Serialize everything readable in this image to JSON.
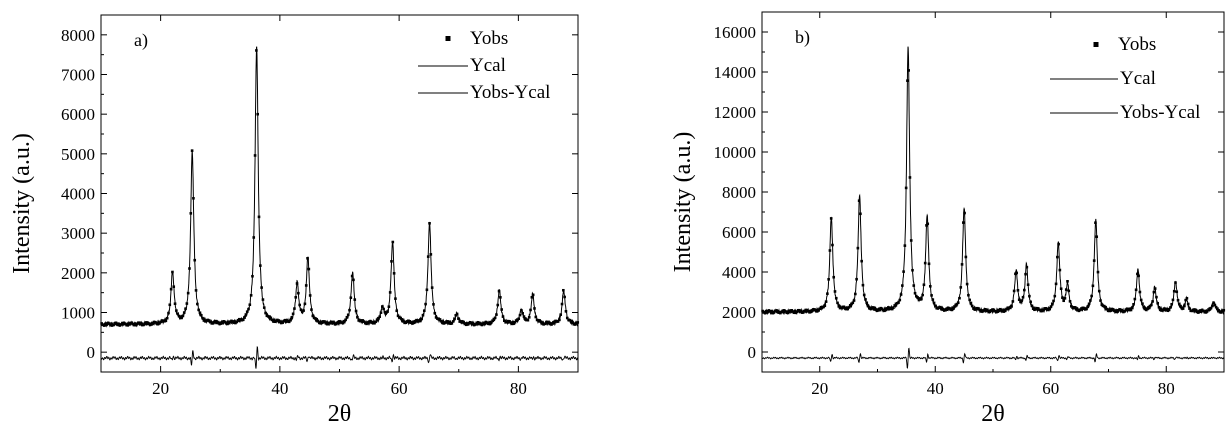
{
  "chart_data": [
    {
      "type": "line",
      "panel_label": "a)",
      "xlabel": "2θ",
      "ylabel": "Intensity (a.u.)",
      "xlim": [
        10,
        90
      ],
      "ylim": [
        -500,
        8500
      ],
      "xticks": [
        "20",
        "40",
        "60",
        "80"
      ],
      "yticks": [
        "0",
        "1000",
        "2000",
        "3000",
        "4000",
        "5000",
        "6000",
        "7000",
        "8000"
      ],
      "grid": false,
      "legend_position": "top-right",
      "background_level": 700,
      "peaks": [
        {
          "x": 22.0,
          "y": 2000
        },
        {
          "x": 25.3,
          "y": 5050
        },
        {
          "x": 36.1,
          "y": 7700
        },
        {
          "x": 42.9,
          "y": 1700
        },
        {
          "x": 44.7,
          "y": 2350
        },
        {
          "x": 52.2,
          "y": 2000
        },
        {
          "x": 57.2,
          "y": 1100
        },
        {
          "x": 58.9,
          "y": 2750
        },
        {
          "x": 65.1,
          "y": 3250
        },
        {
          "x": 69.7,
          "y": 950
        },
        {
          "x": 76.8,
          "y": 1550
        },
        {
          "x": 80.5,
          "y": 1050
        },
        {
          "x": 82.4,
          "y": 1450
        },
        {
          "x": 87.6,
          "y": 1550
        }
      ],
      "residual_baseline": -150,
      "series": [
        {
          "name": "Yobs",
          "style": "points"
        },
        {
          "name": "Ycal",
          "style": "line"
        },
        {
          "name": "Yobs-Ycal",
          "style": "line"
        }
      ]
    },
    {
      "type": "line",
      "panel_label": "b)",
      "xlabel": "2θ",
      "ylabel": "Intensity (a.u.)",
      "xlim": [
        10,
        90
      ],
      "ylim": [
        -1000,
        17000
      ],
      "xticks": [
        "20",
        "40",
        "60",
        "80"
      ],
      "yticks": [
        "0",
        "2000",
        "4000",
        "6000",
        "8000",
        "10000",
        "12000",
        "14000",
        "16000"
      ],
      "grid": false,
      "legend_position": "top-right",
      "background_level": 2000,
      "peaks": [
        {
          "x": 22.0,
          "y": 6700
        },
        {
          "x": 26.9,
          "y": 7800
        },
        {
          "x": 35.3,
          "y": 15200
        },
        {
          "x": 38.6,
          "y": 6700
        },
        {
          "x": 45.0,
          "y": 7200
        },
        {
          "x": 54.0,
          "y": 4000
        },
        {
          "x": 55.8,
          "y": 4300
        },
        {
          "x": 61.3,
          "y": 5400
        },
        {
          "x": 62.9,
          "y": 3300
        },
        {
          "x": 67.8,
          "y": 6600
        },
        {
          "x": 75.1,
          "y": 4100
        },
        {
          "x": 78.0,
          "y": 3200
        },
        {
          "x": 81.6,
          "y": 3500
        },
        {
          "x": 83.5,
          "y": 2600
        },
        {
          "x": 88.2,
          "y": 2500
        }
      ],
      "residual_baseline": -300,
      "series": [
        {
          "name": "Yobs",
          "style": "points"
        },
        {
          "name": "Ycal",
          "style": "line"
        },
        {
          "name": "Yobs-Ycal",
          "style": "line"
        }
      ]
    }
  ]
}
